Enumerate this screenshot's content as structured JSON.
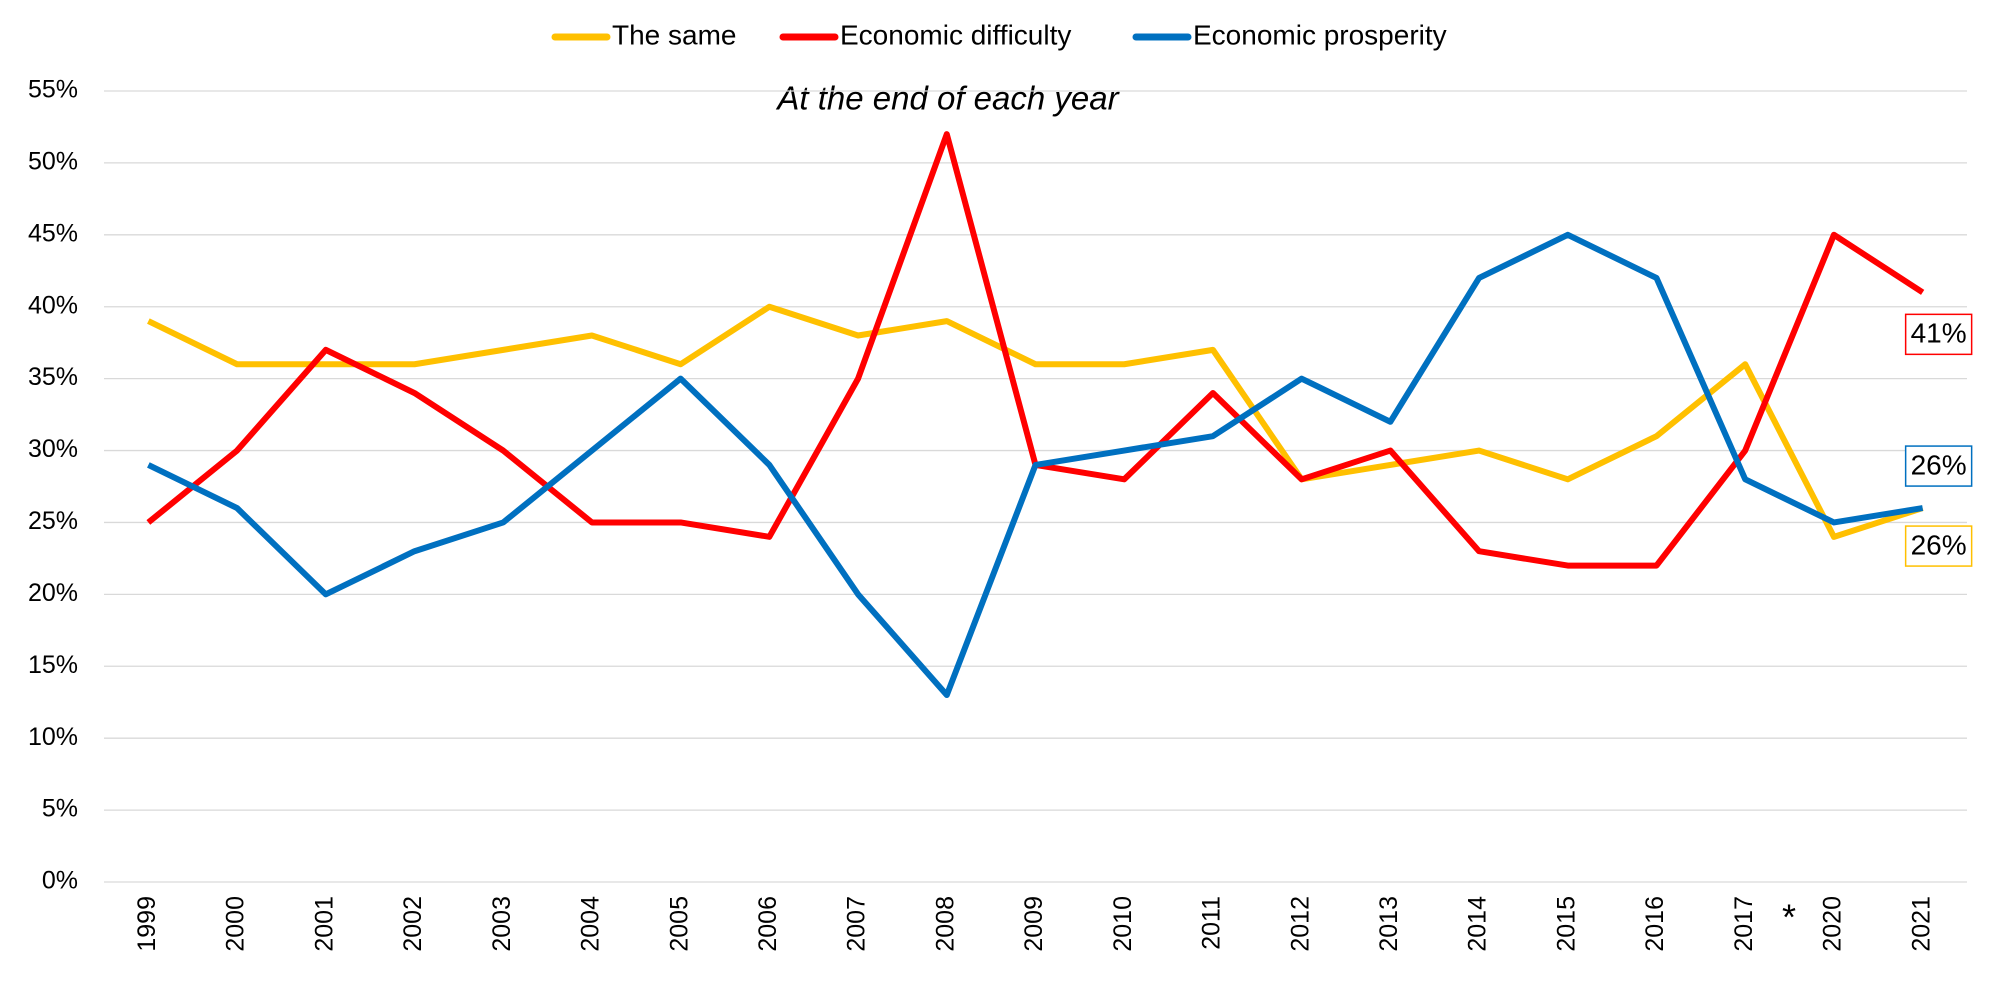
{
  "chart_data": {
    "type": "line",
    "subtitle": "At the end of each year",
    "annotations": [
      "*"
    ],
    "categories": [
      "1999",
      "2000",
      "2001",
      "2002",
      "2003",
      "2004",
      "2005",
      "2006",
      "2007",
      "2008",
      "2009",
      "2010",
      "2011",
      "2012",
      "2013",
      "2014",
      "2015",
      "2016",
      "2017",
      "2020",
      "2021"
    ],
    "series": [
      {
        "name": "The same",
        "color": "#ffc000",
        "values": [
          39,
          36,
          36,
          36,
          37,
          38,
          36,
          40,
          38,
          39,
          36,
          36,
          37,
          28,
          29,
          30,
          28,
          31,
          36,
          24,
          26
        ],
        "value_labels": {
          "20": "26%"
        }
      },
      {
        "name": "Economic difficulty",
        "color": "#ff0000",
        "values": [
          25,
          30,
          37,
          34,
          30,
          25,
          25,
          24,
          35,
          52,
          29,
          28,
          34,
          28,
          30,
          23,
          22,
          22,
          30,
          45,
          41
        ],
        "value_labels": {
          "20": "41%"
        }
      },
      {
        "name": "Economic prosperity",
        "color": "#0070c0",
        "values": [
          29,
          26,
          20,
          23,
          25,
          30,
          35,
          29,
          20,
          13,
          29,
          30,
          31,
          35,
          32,
          42,
          45,
          42,
          28,
          25,
          26
        ],
        "value_labels": {
          "20": "26%"
        }
      }
    ],
    "ylim": [
      0,
      55
    ],
    "yticks": [
      {
        "value": 0,
        "label": "0%"
      },
      {
        "value": 5,
        "label": "5%"
      },
      {
        "value": 10,
        "label": "10%"
      },
      {
        "value": 15,
        "label": "15%"
      },
      {
        "value": 20,
        "label": "20%"
      },
      {
        "value": 25,
        "label": "25%"
      },
      {
        "value": 30,
        "label": "30%"
      },
      {
        "value": 35,
        "label": "35%"
      },
      {
        "value": 40,
        "label": "40%"
      },
      {
        "value": 45,
        "label": "45%"
      },
      {
        "value": 50,
        "label": "50%"
      },
      {
        "value": 55,
        "label": "55%"
      }
    ],
    "grid": true,
    "legend": "top"
  }
}
